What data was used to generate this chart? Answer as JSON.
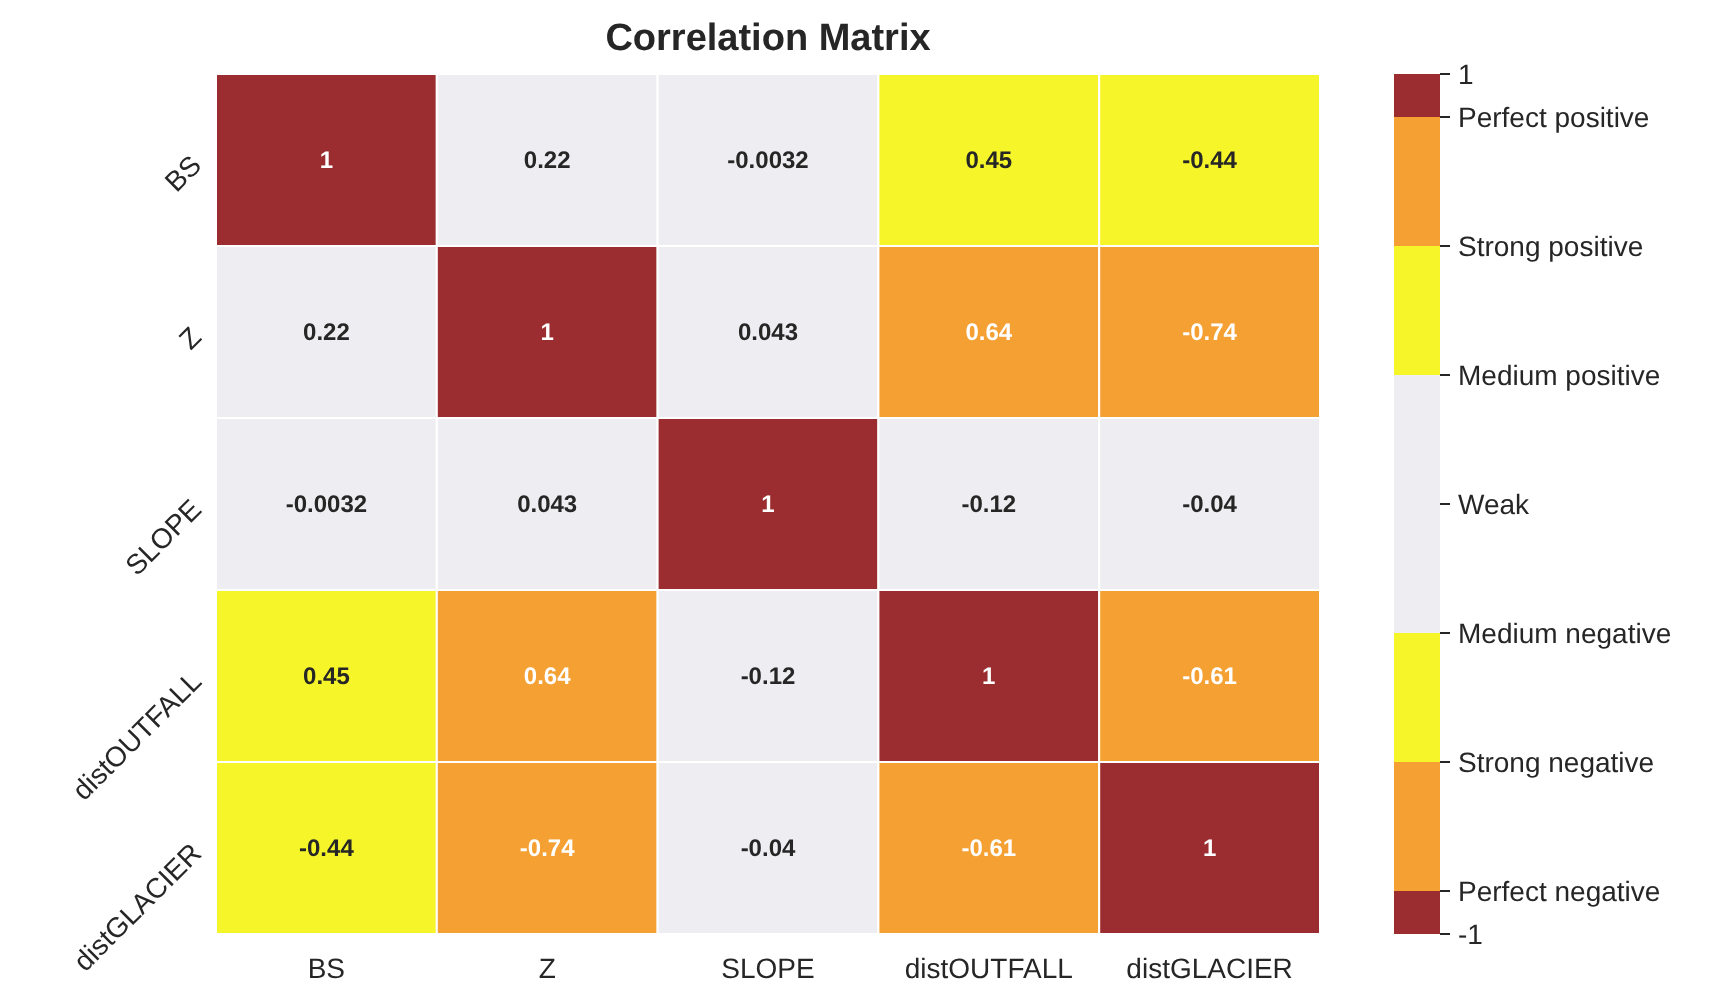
{
  "chart_data": {
    "type": "heatmap",
    "title": "Correlation Matrix",
    "categories": [
      "BS",
      "Z",
      "SLOPE",
      "distOUTFALL",
      "distGLACIER"
    ],
    "y_categories": [
      "BS",
      "Z",
      "SLOPE",
      "distOUTFALL",
      "distGLACIER"
    ],
    "cells": [
      [
        1,
        0.22,
        -0.0032,
        0.45,
        -0.44
      ],
      [
        0.22,
        1,
        0.043,
        0.64,
        -0.74
      ],
      [
        -0.0032,
        0.043,
        1,
        -0.12,
        -0.04
      ],
      [
        0.45,
        0.64,
        -0.12,
        1,
        -0.61
      ],
      [
        -0.44,
        -0.74,
        -0.04,
        -0.61,
        1
      ]
    ],
    "data_labels": true,
    "clim": [
      -1,
      1
    ],
    "cticks": [
      1,
      {
        "value": 0.9,
        "label": "Perfect positive"
      },
      {
        "value": 0.6,
        "label": "Strong positive"
      },
      {
        "value": 0.3,
        "label": "Medium positive"
      },
      {
        "value": 0,
        "label": "Weak"
      },
      {
        "value": -0.3,
        "label": "Medium negative"
      },
      {
        "value": -0.6,
        "label": "Strong negative"
      },
      {
        "value": -0.9,
        "label": "Perfect negative"
      },
      -1
    ],
    "colors": [
      "#9b2d30",
      "#f5a033",
      "#f5a033",
      "#f5a033",
      "#f5f52a",
      "#f5f52a",
      "#f5f52a",
      "#eeeef2",
      "#eeeef2",
      "#eeeef2",
      "#eeeef2",
      "#eeeef2",
      "#eeeef2",
      "#f5f52a",
      "#f5f52a",
      "#f5f52a",
      "#f5a033",
      "#f5a033",
      "#f5a033",
      "#9b2d30"
    ]
  }
}
